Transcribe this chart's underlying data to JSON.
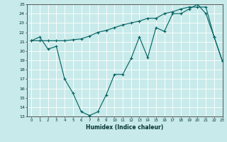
{
  "xlabel": "Humidex (Indice chaleur)",
  "bg_color": "#c8eaea",
  "grid_color": "#ffffff",
  "line_color": "#006060",
  "ylim": [
    13,
    25
  ],
  "xlim": [
    -0.5,
    23
  ],
  "yticks": [
    13,
    14,
    15,
    16,
    17,
    18,
    19,
    20,
    21,
    22,
    23,
    24,
    25
  ],
  "xticks": [
    0,
    1,
    2,
    3,
    4,
    5,
    6,
    7,
    8,
    9,
    10,
    11,
    12,
    13,
    14,
    15,
    16,
    17,
    18,
    19,
    20,
    21,
    22,
    23
  ],
  "series1_x": [
    0,
    1,
    2,
    3,
    4,
    5,
    6,
    7,
    8,
    9,
    10,
    11,
    12,
    13,
    14,
    15,
    16,
    17,
    18,
    19,
    20,
    21,
    22,
    23
  ],
  "series1_y": [
    21.1,
    21.5,
    20.2,
    20.5,
    17.0,
    15.5,
    13.5,
    13.1,
    13.5,
    15.3,
    17.5,
    17.5,
    19.2,
    21.5,
    19.3,
    22.5,
    22.1,
    24.0,
    24.0,
    24.5,
    25.0,
    24.0,
    21.5,
    18.9
  ],
  "series2_x": [
    0,
    1,
    2,
    3,
    4,
    5,
    6,
    7,
    8,
    9,
    10,
    11,
    12,
    13,
    14,
    15,
    16,
    17,
    18,
    19,
    20,
    21,
    22,
    23
  ],
  "series2_y": [
    21.1,
    21.1,
    21.1,
    21.1,
    21.1,
    21.2,
    21.3,
    21.6,
    22.0,
    22.2,
    22.5,
    22.8,
    23.0,
    23.2,
    23.5,
    23.5,
    24.0,
    24.2,
    24.5,
    24.7,
    24.7,
    24.7,
    21.5,
    18.9
  ]
}
